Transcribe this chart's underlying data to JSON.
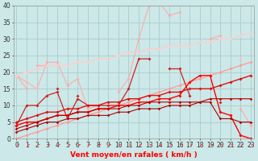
{
  "x": [
    0,
    1,
    2,
    3,
    4,
    5,
    6,
    7,
    8,
    9,
    10,
    11,
    12,
    13,
    14,
    15,
    16,
    17,
    18,
    19,
    20,
    21,
    22,
    23
  ],
  "series": [
    {
      "color": "#ffaaaa",
      "linewidth": 0.8,
      "markersize": 2.0,
      "values": [
        19,
        17,
        15,
        23,
        23,
        16,
        18,
        9,
        10,
        null,
        14,
        18,
        30,
        40,
        41,
        37,
        38,
        null,
        null,
        30,
        31,
        null,
        9,
        4
      ]
    },
    {
      "color": "#ffaaaa",
      "linewidth": 0.8,
      "markersize": 2.0,
      "values": [
        null,
        null,
        22,
        22,
        null,
        null,
        23,
        null,
        null,
        24,
        null,
        null,
        null,
        null,
        null,
        null,
        null,
        null,
        null,
        null,
        null,
        null,
        null,
        null
      ]
    },
    {
      "color": "#ffaaaa",
      "linewidth": 0.8,
      "markersize": 2.0,
      "values": [
        19,
        15,
        null,
        null,
        null,
        null,
        null,
        null,
        null,
        null,
        null,
        null,
        null,
        null,
        null,
        null,
        null,
        null,
        null,
        null,
        null,
        null,
        null,
        null
      ]
    },
    {
      "color": "#ffbbbb",
      "linewidth": 0.8,
      "markersize": 2.0,
      "values": [
        null,
        17,
        15,
        null,
        null,
        null,
        null,
        null,
        null,
        null,
        null,
        null,
        null,
        null,
        null,
        null,
        null,
        null,
        null,
        null,
        null,
        null,
        24,
        null
      ]
    },
    {
      "color": "#ff9999",
      "linewidth": 0.9,
      "markersize": 2.0,
      "values": [
        0,
        1,
        2,
        3,
        4,
        5,
        6,
        7,
        8,
        9,
        10,
        11,
        12,
        13,
        14,
        15,
        16,
        17,
        18,
        19,
        20,
        21,
        22,
        23
      ]
    },
    {
      "color": "#ffcccc",
      "linewidth": 0.9,
      "markersize": 2.0,
      "values": [
        19,
        20,
        21,
        22,
        22,
        22,
        23,
        23,
        24,
        24,
        25,
        26,
        26,
        27,
        27,
        28,
        28,
        28,
        29,
        29,
        30,
        30,
        31,
        32
      ]
    },
    {
      "color": "#cc2222",
      "linewidth": 0.9,
      "markersize": 2.0,
      "values": [
        4,
        10,
        10,
        13,
        14,
        6,
        12,
        10,
        10,
        10,
        10,
        15,
        24,
        24,
        null,
        21,
        21,
        13,
        null,
        null,
        11,
        null,
        null,
        null
      ]
    },
    {
      "color": "#cc2222",
      "linewidth": 0.9,
      "markersize": 2.0,
      "values": [
        null,
        null,
        null,
        null,
        15,
        null,
        13,
        null,
        null,
        null,
        null,
        null,
        null,
        null,
        null,
        null,
        null,
        null,
        null,
        null,
        null,
        null,
        null,
        null
      ]
    },
    {
      "color": "#dd1111",
      "linewidth": 1.0,
      "markersize": 2.0,
      "values": [
        5,
        6,
        7,
        8,
        8,
        9,
        9,
        10,
        10,
        11,
        11,
        12,
        12,
        13,
        13,
        14,
        14,
        15,
        15,
        15,
        16,
        17,
        18,
        19
      ]
    },
    {
      "color": "#ff0000",
      "linewidth": 1.0,
      "markersize": 2.0,
      "values": [
        4,
        5,
        5,
        6,
        7,
        7,
        8,
        8,
        9,
        9,
        10,
        10,
        11,
        11,
        12,
        12,
        13,
        17,
        19,
        19,
        8,
        7,
        1,
        0
      ]
    },
    {
      "color": "#bb0000",
      "linewidth": 0.8,
      "markersize": 1.8,
      "values": [
        3,
        4,
        5,
        6,
        7,
        7,
        8,
        8,
        9,
        9,
        9,
        10,
        10,
        11,
        11,
        11,
        11,
        11,
        11,
        12,
        12,
        12,
        12,
        12
      ]
    },
    {
      "color": "#aa0000",
      "linewidth": 0.8,
      "markersize": 1.8,
      "values": [
        2,
        3,
        4,
        5,
        5,
        6,
        6,
        7,
        7,
        7,
        8,
        8,
        9,
        9,
        9,
        10,
        10,
        10,
        11,
        11,
        6,
        6,
        5,
        5
      ]
    }
  ],
  "xlabel": "Vent moyen/en rafales ( km/h )",
  "xlim_min": -0.3,
  "xlim_max": 23.3,
  "ylim": [
    0,
    40
  ],
  "yticks": [
    0,
    5,
    10,
    15,
    20,
    25,
    30,
    35,
    40
  ],
  "xticks": [
    0,
    1,
    2,
    3,
    4,
    5,
    6,
    7,
    8,
    9,
    10,
    11,
    12,
    13,
    14,
    15,
    16,
    17,
    18,
    19,
    20,
    21,
    22,
    23
  ],
  "background_color": "#cce8e8",
  "grid_color": "#aacccc",
  "xlabel_fontsize": 6.5,
  "tick_fontsize": 5.5,
  "arrow_color": "#ff4444"
}
